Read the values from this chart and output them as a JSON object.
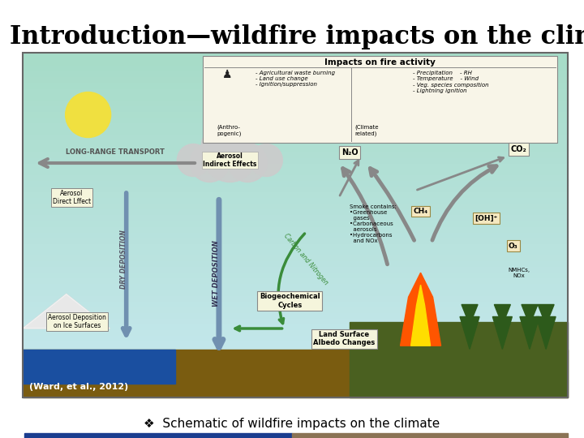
{
  "title": "Introduction—wildfire impacts on the climate",
  "title_fontsize": 22,
  "title_fontweight": "bold",
  "background_color": "#ffffff",
  "ward_label": "(Ward, et al., 2012)",
  "bullet_text": "Schematic of wildfire impacts on the climate",
  "bullet_symbol": "❖",
  "sky_color_top": "#c8e8f0",
  "sky_color_bot": "#a8d8c8",
  "ground_color": "#8B6914",
  "water_color": "#1a4fa0",
  "strip_blue": "#1a3d8f",
  "strip_tan": "#8B7355"
}
